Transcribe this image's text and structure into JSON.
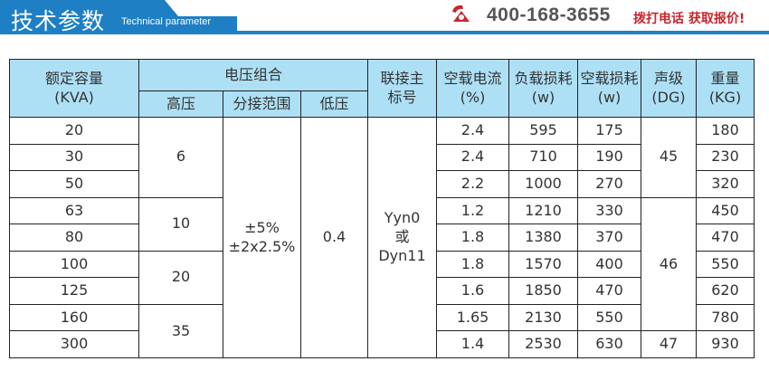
{
  "banner": {
    "title": "技术参数",
    "subtitle": "Technical parameter",
    "phone": "400-168-3655",
    "cta": "拨打电话 获取报价!",
    "accent_color": "#1e7fc4",
    "cta_color": "#c9252c",
    "icon": "phone-icon"
  },
  "table": {
    "header_bg": "#aee0f5",
    "headers": {
      "capacity": "额定容量\n(KVA)",
      "voltage_group": "电压组合",
      "high_voltage": "高压",
      "tap_range": "分接范围",
      "low_voltage": "低压",
      "connection": "联接主\n标号",
      "no_load_current": "空载电流\n(%)",
      "load_loss": "负载损耗\n(w)",
      "no_load_loss": "空载损耗\n(w)",
      "sound_level": "声级\n(DG)",
      "weight": "重量\n(KG)"
    },
    "merged": {
      "high_voltage": [
        "6",
        "10",
        "20",
        "35"
      ],
      "tap_range": "±5%\n±2x2.5%",
      "low_voltage": "0.4",
      "connection": "Yyn0\n或\nDyn11",
      "sound_level": [
        "45",
        "46",
        "47"
      ]
    },
    "rows": [
      {
        "capacity": "20",
        "current": "2.4",
        "load_loss": "595",
        "no_load_loss": "175",
        "weight": "180"
      },
      {
        "capacity": "30",
        "current": "2.4",
        "load_loss": "710",
        "no_load_loss": "190",
        "weight": "230"
      },
      {
        "capacity": "50",
        "current": "2.2",
        "load_loss": "1000",
        "no_load_loss": "270",
        "weight": "320"
      },
      {
        "capacity": "63",
        "current": "1.2",
        "load_loss": "1210",
        "no_load_loss": "330",
        "weight": "450"
      },
      {
        "capacity": "80",
        "current": "1.8",
        "load_loss": "1380",
        "no_load_loss": "370",
        "weight": "470"
      },
      {
        "capacity": "100",
        "current": "1.8",
        "load_loss": "1570",
        "no_load_loss": "400",
        "weight": "550"
      },
      {
        "capacity": "125",
        "current": "1.6",
        "load_loss": "1850",
        "no_load_loss": "470",
        "weight": "620"
      },
      {
        "capacity": "160",
        "current": "1.65",
        "load_loss": "2130",
        "no_load_loss": "550",
        "weight": "780"
      },
      {
        "capacity": "300",
        "current": "1.4",
        "load_loss": "2530",
        "no_load_loss": "630",
        "weight": "930"
      }
    ]
  }
}
